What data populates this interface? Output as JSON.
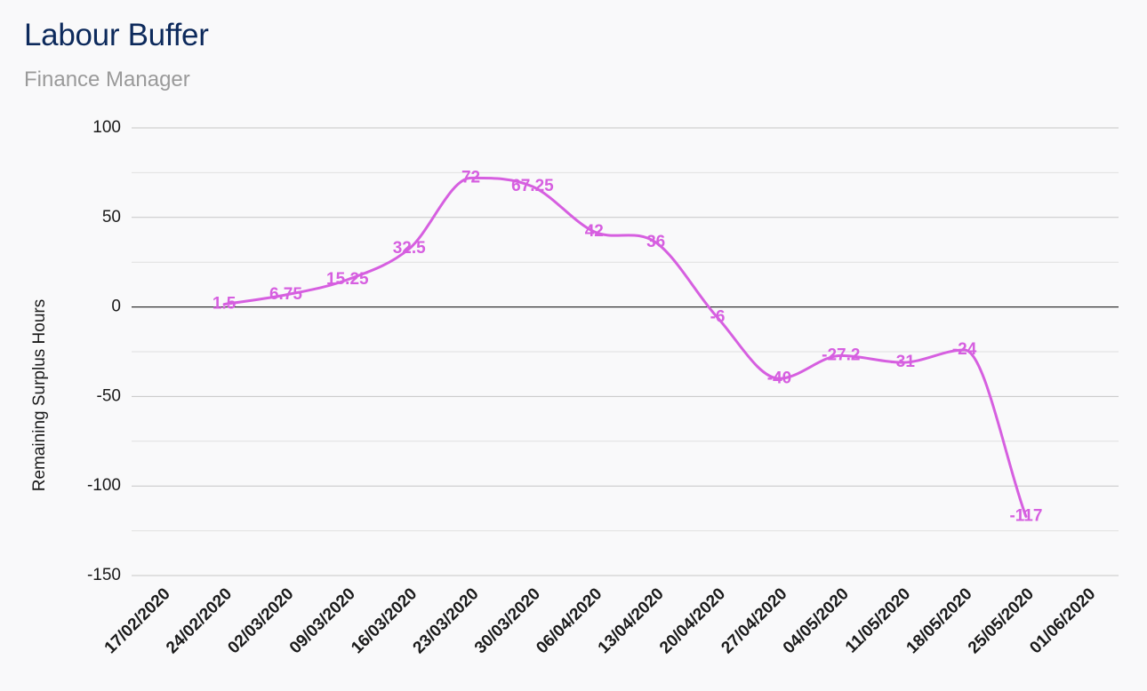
{
  "header": {
    "title": "Labour Buffer",
    "subtitle": "Finance Manager"
  },
  "chart_data": {
    "type": "line",
    "title": "Labour Buffer",
    "subtitle": "Finance Manager",
    "xlabel": "",
    "ylabel": "Remaining Surplus Hours",
    "ylim": [
      -150,
      100
    ],
    "yticks": [
      100,
      50,
      0,
      -50,
      -100,
      -150
    ],
    "grid": true,
    "smooth": true,
    "line_color": "#d65fe0",
    "categories": [
      "17/02/2020",
      "24/02/2020",
      "02/03/2020",
      "09/03/2020",
      "16/03/2020",
      "23/03/2020",
      "30/03/2020",
      "06/04/2020",
      "13/04/2020",
      "20/04/2020",
      "27/04/2020",
      "04/05/2020",
      "11/05/2020",
      "18/05/2020",
      "25/05/2020",
      "01/06/2020"
    ],
    "series": [
      {
        "values": [
          null,
          1.5,
          6.75,
          15.25,
          32.5,
          72,
          67.25,
          42,
          36,
          -6,
          -40,
          -27.2,
          -31,
          -24,
          -117,
          null
        ],
        "labels": [
          "",
          "1.5",
          "6.75",
          "15.25",
          "32.5",
          "72",
          "67.25",
          "42",
          "36",
          "-6",
          "-40",
          "-27.2",
          "-31",
          "-24",
          "-117",
          ""
        ]
      }
    ]
  }
}
